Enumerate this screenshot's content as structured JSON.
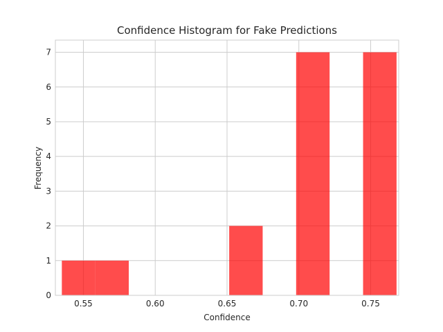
{
  "chart_data": {
    "type": "bar",
    "title": "Confidence Histogram for Fake Predictions",
    "xlabel": "Confidence",
    "ylabel": "Frequency",
    "xlim": [
      0.5305,
      0.7695
    ],
    "ylim": [
      0,
      7.35
    ],
    "x_ticks": [
      0.55,
      0.6,
      0.65,
      0.7,
      0.75
    ],
    "x_tick_labels": [
      "0.55",
      "0.60",
      "0.65",
      "0.70",
      "0.75"
    ],
    "y_ticks": [
      0,
      1,
      2,
      3,
      4,
      5,
      6,
      7
    ],
    "y_tick_labels": [
      "0",
      "1",
      "2",
      "3",
      "4",
      "5",
      "6",
      "7"
    ],
    "grid": true,
    "bar_color": "#ff0000",
    "bar_opacity": 0.7,
    "bins": [
      {
        "start": 0.535,
        "end": 0.5583,
        "count": 1
      },
      {
        "start": 0.5583,
        "end": 0.5816,
        "count": 1
      },
      {
        "start": 0.5816,
        "end": 0.6049,
        "count": 0
      },
      {
        "start": 0.6049,
        "end": 0.6282,
        "count": 0
      },
      {
        "start": 0.6282,
        "end": 0.6515,
        "count": 0
      },
      {
        "start": 0.6515,
        "end": 0.6748,
        "count": 2
      },
      {
        "start": 0.6748,
        "end": 0.6981,
        "count": 0
      },
      {
        "start": 0.6981,
        "end": 0.7214,
        "count": 7
      },
      {
        "start": 0.7214,
        "end": 0.7447,
        "count": 0
      },
      {
        "start": 0.7447,
        "end": 0.768,
        "count": 7
      }
    ]
  }
}
